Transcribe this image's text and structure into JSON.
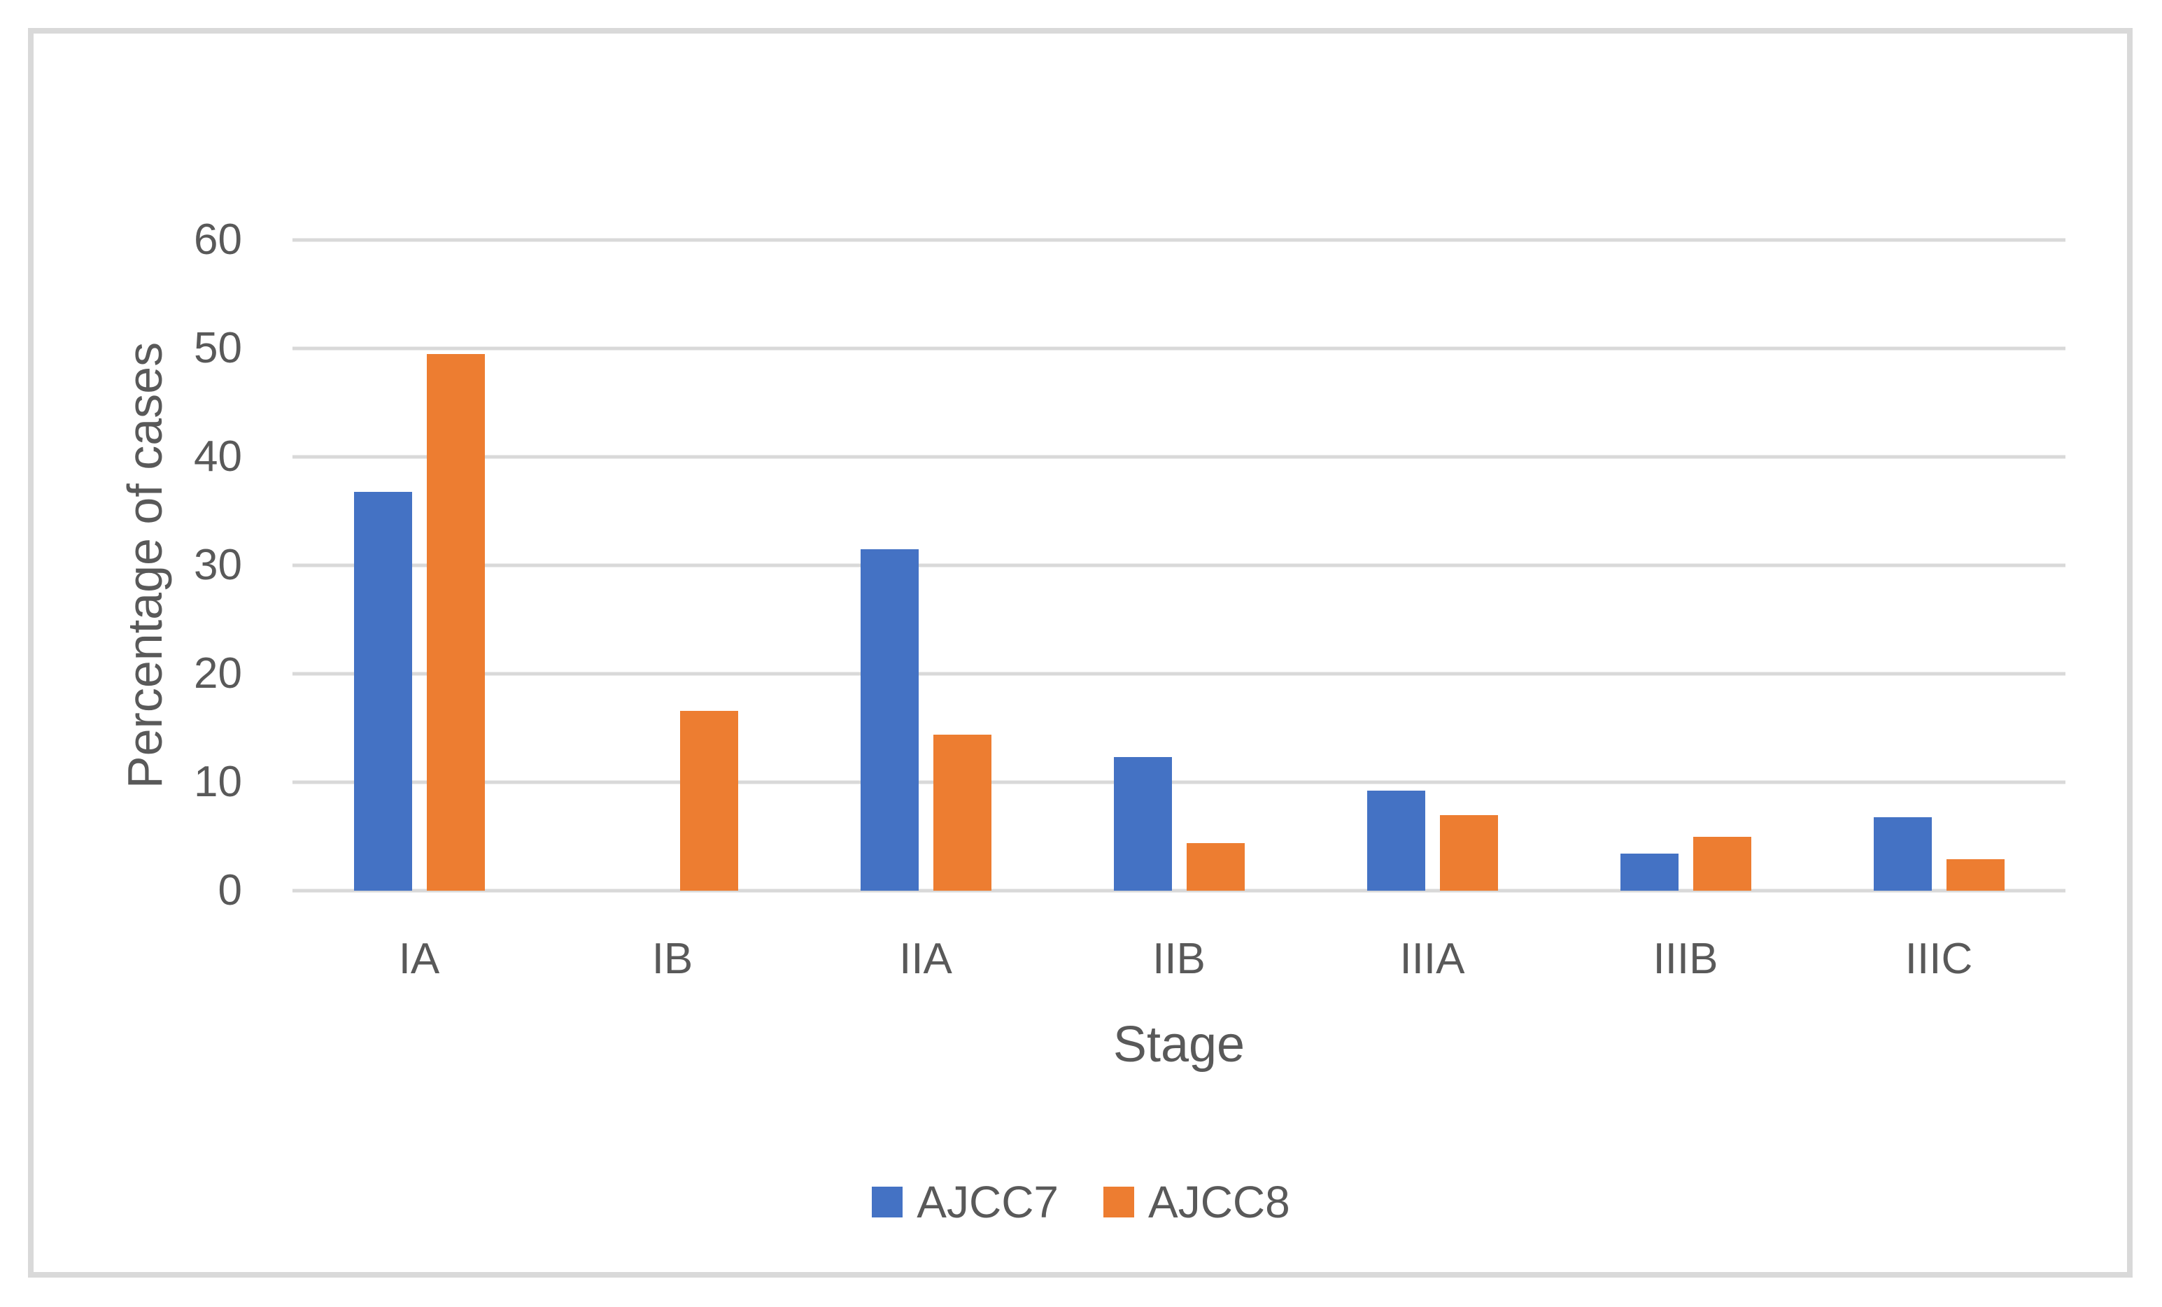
{
  "colors": {
    "ajcc7_blue": "#4472C4",
    "ajcc8_orange": "#ED7D31",
    "axis_text_gray": "#595959",
    "gridline_gray": "#D9D9D9",
    "chart_border_gray": "#D9D9D9",
    "background": "#FFFFFF"
  },
  "chart_data": {
    "type": "bar",
    "title": "",
    "categories": [
      "IA",
      "IB",
      "IIA",
      "IIB",
      "IIIA",
      "IIIB",
      "IIIC"
    ],
    "series": [
      {
        "name": "AJCC7",
        "color": "#4472C4",
        "values": [
          36.8,
          0,
          31.5,
          12.3,
          9.2,
          3.4,
          6.8
        ]
      },
      {
        "name": "AJCC8",
        "color": "#ED7D31",
        "values": [
          49.5,
          16.6,
          14.4,
          4.4,
          7.0,
          5.0,
          2.9
        ]
      }
    ],
    "xlabel": "Stage",
    "ylabel": "Percentage of cases",
    "ylim": [
      0,
      60
    ],
    "ytick_values": [
      0,
      10,
      20,
      30,
      40,
      50,
      60
    ],
    "ytick_labels": [
      "0",
      "10",
      "20",
      "30",
      "40",
      "50",
      "60"
    ],
    "grid": true,
    "gridlines": "horizontal",
    "legend_position": "bottom-center"
  }
}
